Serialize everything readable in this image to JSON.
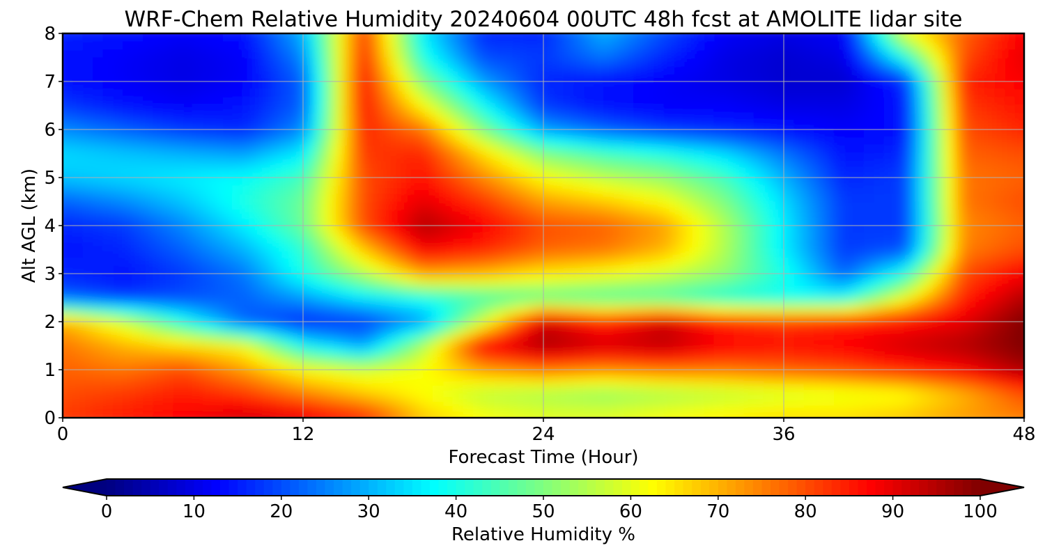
{
  "chart_data": {
    "type": "heatmap",
    "title": "WRF-Chem Relative Humidity 20240604 00UTC 48h fcst at AMOLITE lidar site",
    "xlabel": "Forecast Time (Hour)",
    "ylabel": "Alt AGL (km)",
    "xlim": [
      0,
      48
    ],
    "ylim": [
      0,
      8
    ],
    "xticks": [
      0,
      12,
      24,
      36,
      48
    ],
    "yticks": [
      0,
      1,
      2,
      3,
      4,
      5,
      6,
      7,
      8
    ],
    "grid": true,
    "colormap": "jet",
    "colorbar": {
      "label": "Relative Humidity %",
      "range": [
        0,
        100
      ],
      "ticks": [
        0,
        10,
        20,
        30,
        40,
        50,
        60,
        70,
        80,
        90,
        100
      ],
      "extend": "both",
      "orientation": "horizontal"
    },
    "x": [
      0,
      3,
      6,
      9,
      12,
      15,
      18,
      21,
      24,
      27,
      30,
      33,
      36,
      39,
      42,
      45,
      48
    ],
    "y": [
      0,
      0.5,
      1,
      1.5,
      2,
      2.5,
      3,
      3.5,
      4,
      4.5,
      5,
      5.5,
      6,
      6.5,
      7,
      7.5,
      8
    ],
    "z": [
      [
        82,
        85,
        88,
        92,
        90,
        84,
        68,
        62,
        60,
        60,
        62,
        64,
        66,
        66,
        68,
        72,
        75
      ],
      [
        80,
        82,
        85,
        82,
        75,
        68,
        62,
        56,
        54,
        52,
        54,
        56,
        58,
        60,
        62,
        70,
        80
      ],
      [
        78,
        76,
        80,
        72,
        62,
        58,
        62,
        72,
        76,
        74,
        76,
        76,
        78,
        80,
        84,
        88,
        96
      ],
      [
        76,
        70,
        66,
        62,
        38,
        28,
        55,
        88,
        96,
        92,
        94,
        88,
        86,
        88,
        92,
        95,
        100
      ],
      [
        70,
        58,
        40,
        22,
        16,
        18,
        28,
        58,
        92,
        84,
        92,
        84,
        82,
        84,
        86,
        90,
        100
      ],
      [
        22,
        18,
        20,
        22,
        28,
        36,
        40,
        44,
        46,
        45,
        44,
        40,
        38,
        38,
        60,
        84,
        95
      ],
      [
        16,
        14,
        18,
        24,
        40,
        55,
        72,
        70,
        65,
        62,
        58,
        52,
        40,
        22,
        40,
        80,
        88
      ],
      [
        14,
        16,
        22,
        30,
        42,
        68,
        88,
        84,
        78,
        76,
        70,
        55,
        36,
        18,
        20,
        75,
        80
      ],
      [
        16,
        18,
        26,
        36,
        48,
        80,
        95,
        88,
        80,
        78,
        72,
        55,
        36,
        18,
        18,
        74,
        78
      ],
      [
        22,
        26,
        32,
        40,
        48,
        80,
        90,
        82,
        72,
        68,
        62,
        50,
        34,
        18,
        18,
        76,
        80
      ],
      [
        32,
        34,
        36,
        38,
        44,
        80,
        86,
        74,
        62,
        56,
        52,
        44,
        30,
        16,
        18,
        76,
        78
      ],
      [
        34,
        32,
        30,
        28,
        36,
        82,
        84,
        66,
        50,
        44,
        40,
        34,
        24,
        14,
        16,
        78,
        80
      ],
      [
        26,
        22,
        18,
        16,
        26,
        84,
        76,
        50,
        28,
        22,
        18,
        16,
        14,
        12,
        14,
        80,
        84
      ],
      [
        18,
        14,
        12,
        14,
        22,
        86,
        62,
        38,
        18,
        14,
        12,
        12,
        10,
        10,
        14,
        82,
        86
      ],
      [
        14,
        12,
        10,
        12,
        22,
        86,
        50,
        28,
        16,
        14,
        12,
        10,
        8,
        8,
        16,
        84,
        88
      ],
      [
        14,
        12,
        10,
        12,
        26,
        84,
        40,
        20,
        18,
        24,
        16,
        10,
        8,
        10,
        40,
        80,
        90
      ],
      [
        16,
        14,
        12,
        14,
        30,
        82,
        36,
        16,
        16,
        30,
        20,
        12,
        10,
        12,
        60,
        78,
        88
      ]
    ]
  }
}
